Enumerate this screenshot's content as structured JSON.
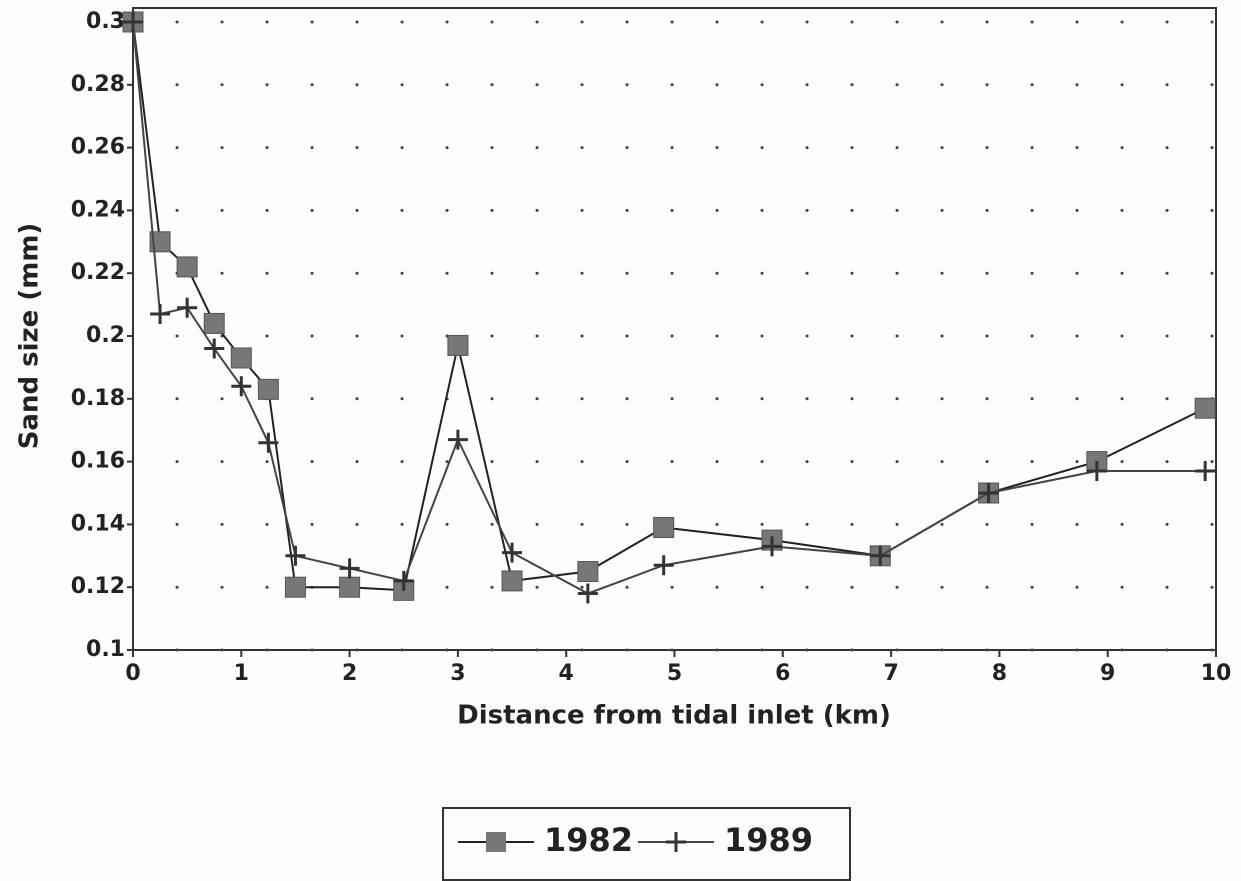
{
  "chart_data": {
    "type": "line",
    "xlabel": "Distance from tidal inlet (km)",
    "ylabel": "Sand size (mm)",
    "x": [
      0,
      0.25,
      0.5,
      0.75,
      1.0,
      1.25,
      1.5,
      2.0,
      2.5,
      3.0,
      3.5,
      4.2,
      4.9,
      5.9,
      6.9,
      7.9,
      8.9,
      9.9
    ],
    "series": [
      {
        "name": "1982",
        "color": "#777777",
        "line_color": "#222222",
        "marker": "square",
        "values": [
          0.3,
          0.23,
          0.222,
          0.204,
          0.193,
          0.183,
          0.12,
          0.12,
          0.119,
          0.197,
          0.122,
          0.125,
          0.139,
          0.135,
          0.13,
          0.15,
          0.16,
          0.177
        ]
      },
      {
        "name": "1989",
        "color": "#333333",
        "line_color": "#444444",
        "marker": "plus",
        "values": [
          0.3,
          0.207,
          0.209,
          0.196,
          0.184,
          0.166,
          0.13,
          0.126,
          0.122,
          0.167,
          0.131,
          0.118,
          0.127,
          0.133,
          0.13,
          0.15,
          0.157,
          0.157
        ]
      }
    ],
    "xlim": [
      0,
      10
    ],
    "xticks": [
      0,
      1,
      2,
      3,
      4,
      5,
      6,
      7,
      8,
      9,
      10
    ],
    "ylim": [
      0.1,
      0.3
    ],
    "yticks": [
      0.1,
      0.12,
      0.14,
      0.16,
      0.18,
      0.2,
      0.22,
      0.24,
      0.26,
      0.28,
      0.3
    ],
    "grid": true,
    "legend": "bottom"
  }
}
